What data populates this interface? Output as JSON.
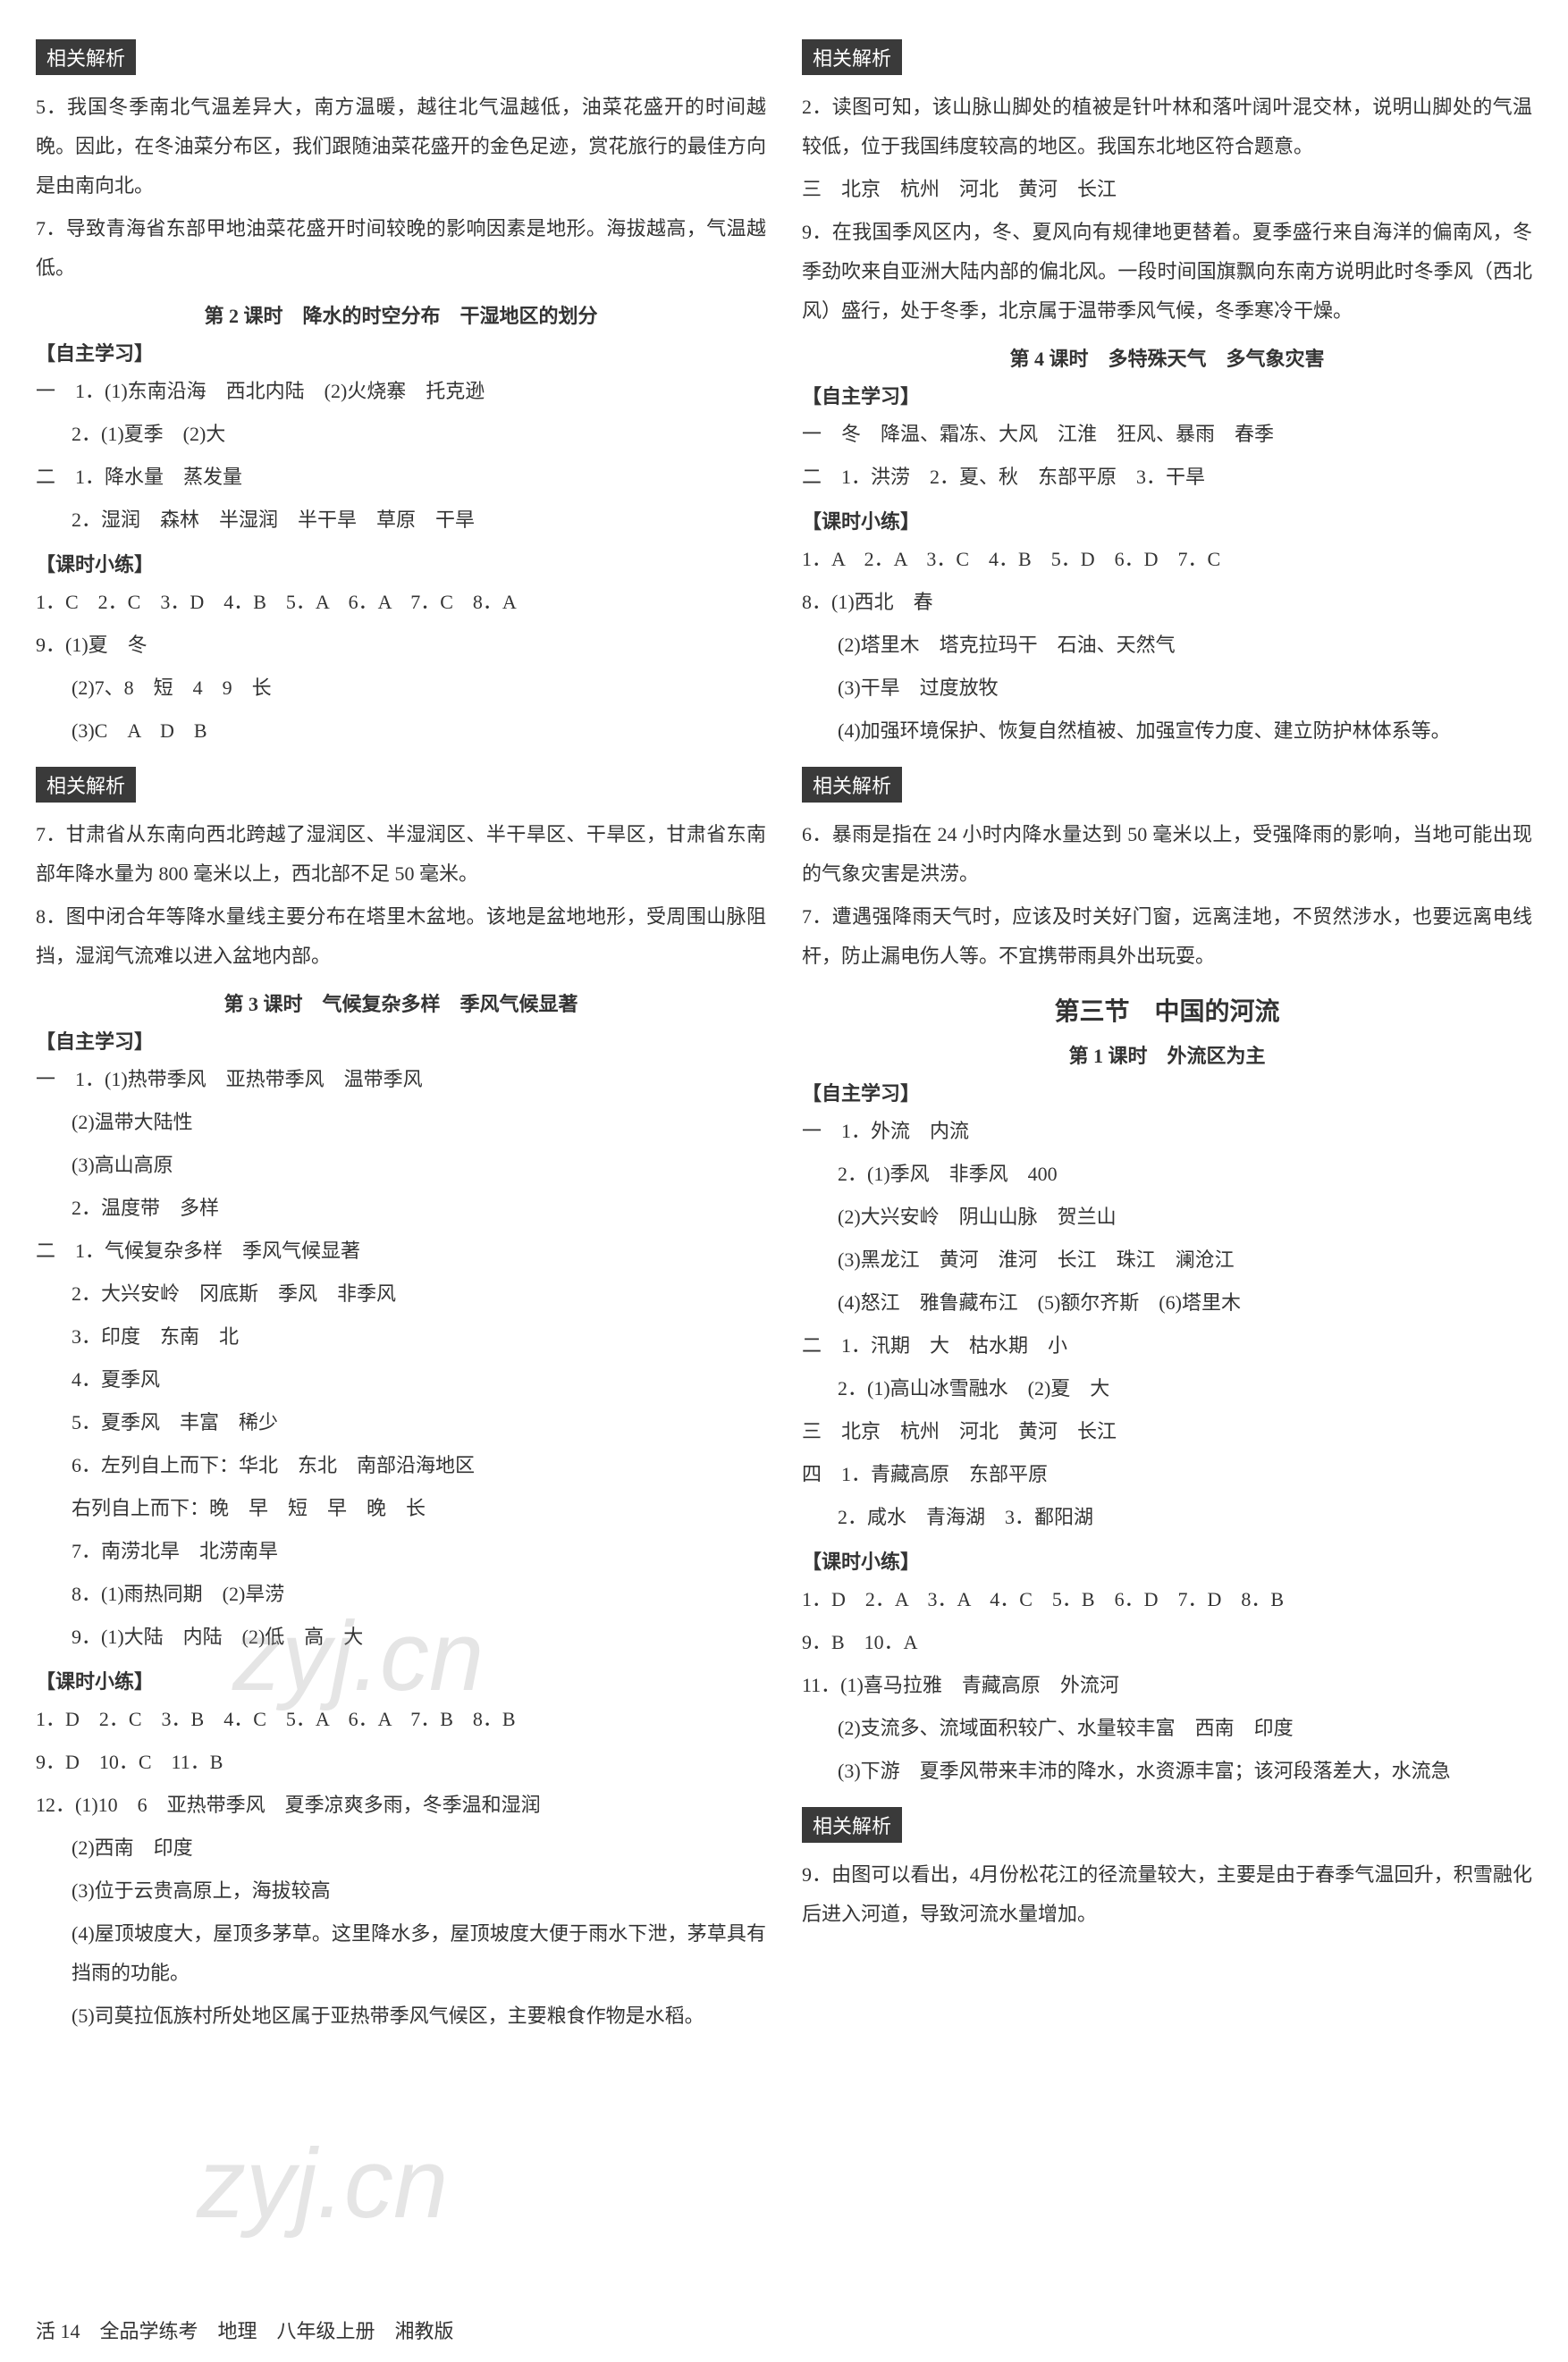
{
  "tags": {
    "analysis": "相关解析"
  },
  "left": {
    "a5": "5．我国冬季南北气温差异大，南方温暖，越往北气温越低，油菜花盛开的时间越晚。因此，在冬油菜分布区，我们跟随油菜花盛开的金色足迹，赏花旅行的最佳方向是由南向北。",
    "a7": "7．导致青海省东部甲地油菜花盛开时间较晚的影响因素是地形。海拔越高，气温越低。",
    "lesson2": "第 2 课时　降水的时空分布　干湿地区的划分",
    "selfstudy": "【自主学习】",
    "l2_1": "一　1．(1)东南沿海　西北内陆　(2)火烧寨　托克逊",
    "l2_1b": "2．(1)夏季　(2)大",
    "l2_2": "二　1．降水量　蒸发量",
    "l2_2b": "2．湿润　森林　半湿润　半干旱　草原　干旱",
    "practice": "【课时小练】",
    "l2_ans": "1．C　2．C　3．D　4．B　5．A　6．A　7．C　8．A",
    "l2_9a": "9．(1)夏　冬",
    "l2_9b": "(2)7、8　短　4　9　长",
    "l2_9c": "(3)C　A　D　B",
    "l2_e7": "7．甘肃省从东南向西北跨越了湿润区、半湿润区、半干旱区、干旱区，甘肃省东南部年降水量为 800 毫米以上，西北部不足 50 毫米。",
    "l2_e8": "8．图中闭合年等降水量线主要分布在塔里木盆地。该地是盆地地形，受周围山脉阻挡，湿润气流难以进入盆地内部。",
    "lesson3": "第 3 课时　气候复杂多样　季风气候显著",
    "l3_1a": "一　1．(1)热带季风　亚热带季风　温带季风",
    "l3_1b": "(2)温带大陆性",
    "l3_1c": "(3)高山高原",
    "l3_1d": "2．温度带　多样",
    "l3_2a": "二　1．气候复杂多样　季风气候显著",
    "l3_2b": "2．大兴安岭　冈底斯　季风　非季风",
    "l3_2c": "3．印度　东南　北",
    "l3_2d": "4．夏季风",
    "l3_2e": "5．夏季风　丰富　稀少",
    "l3_2f": "6．左列自上而下：华北　东北　南部沿海地区",
    "l3_2f2": "右列自上而下：晚　早　短　早　晚　长",
    "l3_2g": "7．南涝北旱　北涝南旱",
    "l3_2h": "8．(1)雨热同期　(2)旱涝",
    "l3_2i": "9．(1)大陆　内陆　(2)低　高　大",
    "l3_ans": "1．D　2．C　3．B　4．C　5．A　6．A　7．B　8．B",
    "l3_ans2": "9．D　10．C　11．B",
    "l3_12a": "12．(1)10　6　亚热带季风　夏季凉爽多雨，冬季温和湿润",
    "l3_12b": "(2)西南　印度",
    "l3_12c": "(3)位于云贵高原上，海拔较高",
    "l3_12d": "(4)屋顶坡度大，屋顶多茅草。这里降水多，屋顶坡度大便于雨水下泄，茅草具有挡雨的功能。",
    "l3_12e": "(5)司莫拉佤族村所处地区属于亚热带季风气候区，主要粮食作物是水稻。"
  },
  "right": {
    "r2": "2．读图可知，该山脉山脚处的植被是针叶林和落叶阔叶混交林，说明山脚处的气温较低，位于我国纬度较高的地区。我国东北地区符合题意。",
    "r3": "三　北京　杭州　河北　黄河　长江",
    "r9": "9．在我国季风区内，冬、夏风向有规律地更替着。夏季盛行来自海洋的偏南风，冬季劲吹来自亚洲大陆内部的偏北风。一段时间国旗飘向东南方说明此时冬季风（西北风）盛行，处于冬季，北京属于温带季风气候，冬季寒冷干燥。",
    "lesson4": "第 4 课时　多特殊天气　多气象灾害",
    "selfstudy": "【自主学习】",
    "l4_1": "一　冬　降温、霜冻、大风　江淮　狂风、暴雨　春季",
    "l4_2": "二　1．洪涝　2．夏、秋　东部平原　3．干旱",
    "practice": "【课时小练】",
    "l4_ans": "1．A　2．A　3．C　4．B　5．D　6．D　7．C",
    "l4_8a": "8．(1)西北　春",
    "l4_8b": "(2)塔里木　塔克拉玛干　石油、天然气",
    "l4_8c": "(3)干旱　过度放牧",
    "l4_8d": "(4)加强环境保护、恢复自然植被、加强宣传力度、建立防护林体系等。",
    "l4_e6": "6．暴雨是指在 24 小时内降水量达到 50 毫米以上，受强降雨的影响，当地可能出现的气象灾害是洪涝。",
    "l4_e7": "7．遭遇强降雨天气时，应该及时关好门窗，远离洼地，不贸然涉水，也要远离电线杆，防止漏电伤人等。不宜携带雨具外出玩耍。",
    "section3": "第三节　中国的河流",
    "lesson1": "第 1 课时　外流区为主",
    "r1_1": "一　1．外流　内流",
    "r1_2a": "2．(1)季风　非季风　400",
    "r1_2b": "(2)大兴安岭　阴山山脉　贺兰山",
    "r1_2c": "(3)黑龙江　黄河　淮河　长江　珠江　澜沧江",
    "r1_2d": "(4)怒江　雅鲁藏布江　(5)额尔齐斯　(6)塔里木",
    "r2_1": "二　1．汛期　大　枯水期　小",
    "r2_2": "2．(1)高山冰雪融水　(2)夏　大",
    "r4_1": "四　1．青藏高原　东部平原",
    "r4_2": "2．咸水　青海湖　3．鄱阳湖",
    "r_ans": "1．D　2．A　3．A　4．C　5．B　6．D　7．D　8．B",
    "r_ans2": "9．B　10．A",
    "r11a": "11．(1)喜马拉雅　青藏高原　外流河",
    "r11b": "(2)支流多、流域面积较广、水量较丰富　西南　印度",
    "r11c": "(3)下游　夏季风带来丰沛的降水，水资源丰富；该河段落差大，水流急",
    "r_e9": "9．由图可以看出，4月份松花江的径流量较大，主要是由于春季气温回升，积雪融化后进入河道，导致河流水量增加。"
  },
  "footer": "活 14　全品学练考　地理　八年级上册　湘教版",
  "watermark": "zyj.cn"
}
